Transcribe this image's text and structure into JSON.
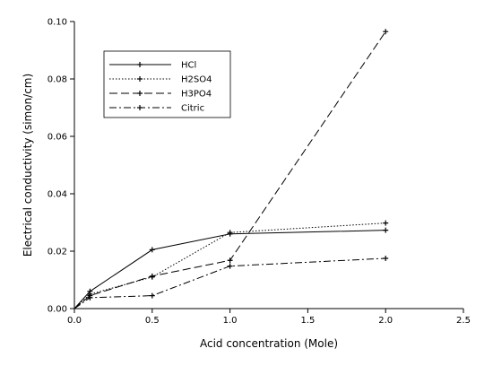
{
  "chart_data": {
    "type": "line",
    "xlabel": "Acid concentration (Mole)",
    "ylabel": "Electrical conductivity (simon/cm)",
    "xlim": [
      0,
      2.5
    ],
    "ylim": [
      0,
      0.1
    ],
    "x_ticks": [
      0.0,
      0.5,
      1.0,
      1.5,
      2.0,
      2.5
    ],
    "x_tick_labels": [
      "0.0",
      "0.5",
      "1.0",
      "1.5",
      "2.0",
      "2.5"
    ],
    "y_ticks": [
      0.0,
      0.02,
      0.04,
      0.06,
      0.08,
      0.1
    ],
    "y_tick_labels": [
      "0.00",
      "0.02",
      "0.04",
      "0.06",
      "0.08",
      "0.10"
    ],
    "grid": false,
    "legend_position": "top-left",
    "series": [
      {
        "name": "HCl",
        "dash": "solid",
        "x": [
          0,
          0.1,
          0.5,
          1.0,
          2.0
        ],
        "values": [
          0.0,
          0.006,
          0.0205,
          0.026,
          0.0273
        ]
      },
      {
        "name": "H2SO4",
        "dash": "dotted",
        "x": [
          0,
          0.1,
          0.5,
          1.0,
          2.0
        ],
        "values": [
          0.0,
          0.005,
          0.011,
          0.0265,
          0.0298
        ]
      },
      {
        "name": "H3PO4",
        "dash": "dashed",
        "x": [
          0,
          0.1,
          0.5,
          1.0,
          2.0
        ],
        "values": [
          0.0,
          0.0045,
          0.0113,
          0.0168,
          0.0965
        ]
      },
      {
        "name": "Citric",
        "dash": "dashdot",
        "x": [
          0,
          0.1,
          0.5,
          1.0,
          2.0
        ],
        "values": [
          0.0,
          0.0038,
          0.0045,
          0.0148,
          0.0175
        ]
      }
    ]
  }
}
